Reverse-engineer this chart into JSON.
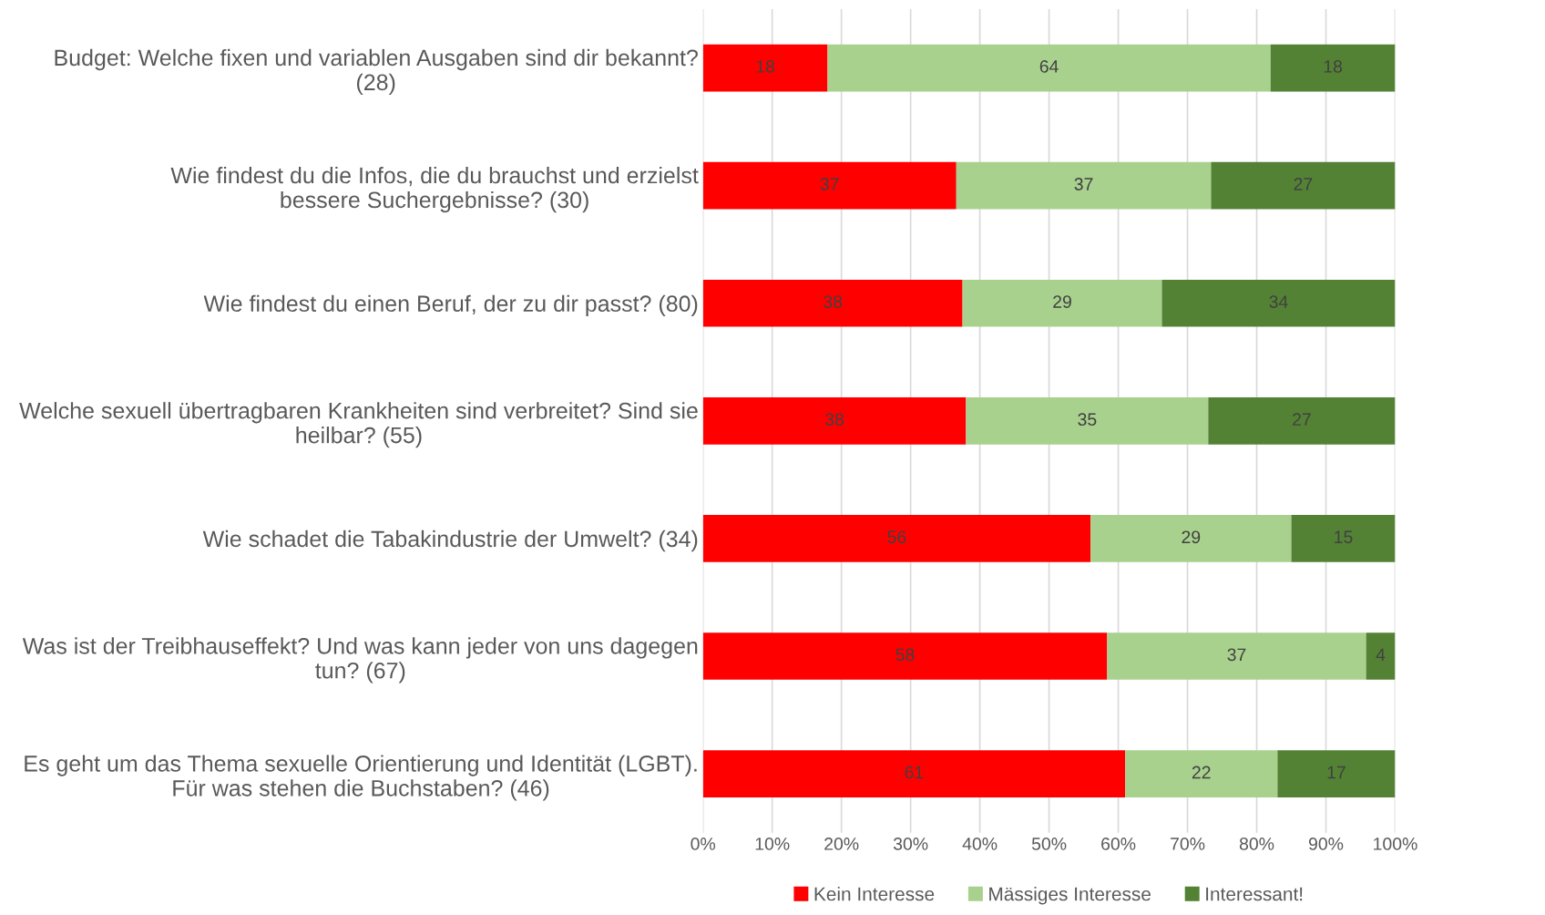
{
  "chart_data": {
    "type": "bar",
    "orientation": "horizontal",
    "stacked": true,
    "categories": [
      "Budget: Welche fixen und variablen Ausgaben sind dir bekannt?\n(28)",
      "Wie findest du die Infos, die du brauchst und erzielst\nbessere Suchergebnisse? (30)",
      "Wie findest du einen Beruf, der zu dir passt? (80)",
      "Welche sexuell übertragbaren Krankheiten sind verbreitet? Sind sie\nheilbar? (55)",
      "Wie schadet die Tabakindustrie der Umwelt? (34)",
      "Was ist der Treibhauseffekt? Und was kann jeder von uns dagegen\ntun? (67)",
      "Es geht um das Thema sexuelle Orientierung und Identität (LGBT).\nFür was stehen die Buchstaben? (46)"
    ],
    "series": [
      {
        "name": "Kein Interesse",
        "color": "#ff0000",
        "values": [
          18,
          36.6,
          37.5,
          38,
          56,
          58.4,
          61
        ],
        "value_labels": [
          "18",
          "37",
          "38",
          "38",
          "56",
          "58",
          "61"
        ]
      },
      {
        "name": "Mässiges Interesse",
        "color": "#a9d18e",
        "values": [
          64,
          36.8,
          28.8,
          35,
          29,
          37.4,
          22
        ],
        "value_labels": [
          "64",
          "37",
          "29",
          "35",
          "29",
          "37",
          "22"
        ]
      },
      {
        "name": "Interessant!",
        "color": "#548235",
        "values": [
          18,
          26.6,
          33.7,
          27,
          15,
          4.2,
          17
        ],
        "value_labels": [
          "18",
          "27",
          "34",
          "27",
          "15",
          "4",
          "17"
        ]
      }
    ],
    "xlim": [
      0,
      100
    ],
    "xticks": [
      {
        "value": 0,
        "label": "0%"
      },
      {
        "value": 10,
        "label": "10%"
      },
      {
        "value": 20,
        "label": "20%"
      },
      {
        "value": 30,
        "label": "30%"
      },
      {
        "value": 40,
        "label": "40%"
      },
      {
        "value": 50,
        "label": "50%"
      },
      {
        "value": 60,
        "label": "60%"
      },
      {
        "value": 70,
        "label": "70%"
      },
      {
        "value": 80,
        "label": "80%"
      },
      {
        "value": 90,
        "label": "90%"
      },
      {
        "value": 100,
        "label": "100%"
      }
    ],
    "grid": "x",
    "legend": "bottom"
  }
}
